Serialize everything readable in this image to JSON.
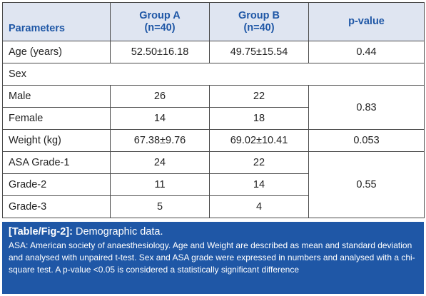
{
  "table": {
    "headers": {
      "parameters": "Parameters",
      "group_a_line1": "Group A",
      "group_a_line2": "(n=40)",
      "group_b_line1": "Group B",
      "group_b_line2": "(n=40)",
      "p_value": "p-value"
    },
    "rows": {
      "age": {
        "label": "Age (years)",
        "a": "52.50±16.18",
        "b": "49.75±15.54",
        "p": "0.44"
      },
      "sex": {
        "label": "Sex"
      },
      "male": {
        "label": "Male",
        "a": "26",
        "b": "22"
      },
      "female": {
        "label": "Female",
        "a": "14",
        "b": "18"
      },
      "sex_p": "0.83",
      "weight": {
        "label": "Weight (kg)",
        "a": "67.38±9.76",
        "b": "69.02±10.41",
        "p": "0.053"
      },
      "asa1": {
        "label": "ASA Grade-1",
        "a": "24",
        "b": "22"
      },
      "asa2": {
        "label": "Grade-2",
        "a": "11",
        "b": "14"
      },
      "asa3": {
        "label": "Grade-3",
        "a": "5",
        "b": "4"
      },
      "asa_p": "0.55"
    }
  },
  "caption": {
    "tag": "[Table/Fig-2]:",
    "title": " Demographic data.",
    "body": "ASA: American society of anaesthesiology. Age and Weight are described as mean and standard deviation and analysed with unpaired t-test. Sex and ASA grade were expressed in numbers and analysed with a chi-square test. A p-value <0.05 is considered a statistically significant difference"
  },
  "colors": {
    "header_bg": "#dfe5f1",
    "header_text": "#1f57a6",
    "caption_bg": "#1f57a6"
  }
}
